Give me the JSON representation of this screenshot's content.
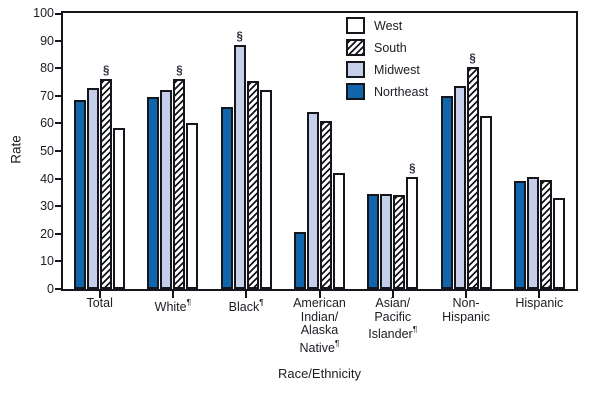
{
  "palette": {
    "ink": "#15151c",
    "text": "#1d1d24",
    "marker_color": "#2f2f40",
    "northeast_fill": "#1065ab",
    "midwest_fill": "#c6cfe9",
    "west_fill": "#ffffff",
    "south_fill": "#ffffff"
  },
  "chart_data": {
    "type": "bar",
    "title": "",
    "xlabel": "Race/Ethnicity",
    "ylabel": "Rate",
    "ylim": [
      0,
      100
    ],
    "ytick_step": 10,
    "grid": false,
    "legend_position": "top-center-inside",
    "categories": [
      {
        "lines": [
          "Total"
        ]
      },
      {
        "lines": [
          "White¶"
        ]
      },
      {
        "lines": [
          "Black¶"
        ]
      },
      {
        "lines": [
          "American",
          "Indian/",
          "Alaska",
          "Native¶"
        ]
      },
      {
        "lines": [
          "Asian/",
          "Pacific",
          "Islander¶"
        ]
      },
      {
        "lines": [
          "Non-",
          "Hispanic"
        ]
      },
      {
        "lines": [
          "Hispanic"
        ]
      }
    ],
    "series": [
      {
        "name": "Northeast",
        "fill": "#1065ab",
        "pattern": "solid",
        "values": [
          68.5,
          69.5,
          66,
          20.5,
          34.5,
          70,
          39
        ]
      },
      {
        "name": "Midwest",
        "fill": "#c6cfe9",
        "pattern": "solid",
        "values": [
          73,
          72,
          88.5,
          64,
          34.5,
          73.5,
          40.5
        ]
      },
      {
        "name": "South",
        "fill": "#ffffff",
        "pattern": "hatch",
        "values": [
          76,
          76,
          75.5,
          61,
          34,
          80.5,
          39.5
        ]
      },
      {
        "name": "West",
        "fill": "#ffffff",
        "pattern": "solid",
        "values": [
          58.5,
          60,
          72,
          42,
          40.5,
          62.5,
          33
        ]
      }
    ],
    "legend_order": [
      "West",
      "South",
      "Midwest",
      "Northeast"
    ],
    "markers": [
      {
        "category_index": 0,
        "series": "South",
        "symbol": "§"
      },
      {
        "category_index": 1,
        "series": "South",
        "symbol": "§"
      },
      {
        "category_index": 2,
        "series": "Midwest",
        "symbol": "§"
      },
      {
        "category_index": 4,
        "series": "West",
        "symbol": "§"
      },
      {
        "category_index": 5,
        "series": "South",
        "symbol": "§"
      }
    ]
  }
}
